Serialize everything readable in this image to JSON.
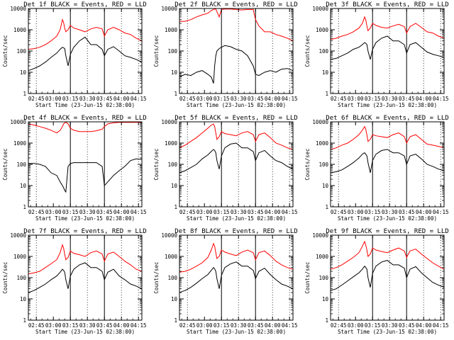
{
  "figure": {
    "title_template": "Det {det}f BLACK = Events, RED = LLD",
    "xlabel": "Start Time (23-Jun-15 02:38:00)",
    "ylabel": "Counts/sec",
    "x_tick_labels": [
      "02:45",
      "03:00",
      "03:15",
      "03:30",
      "03:45",
      "04:00",
      "04:15"
    ],
    "y_tick_labels": [
      "1",
      "10",
      "100",
      "1000",
      "10000"
    ],
    "colors": {
      "events": "#000000",
      "lld": "#ff0000"
    }
  },
  "chart_data": [
    {
      "type": "line",
      "detector": 1,
      "title": "Det 1f BLACK = Events, RED = LLD",
      "xlabel": "Start Time (23-Jun-15 02:38:00)",
      "ylabel": "Counts/sec",
      "x_unit": "minutes after 02:38:00",
      "xlim": [
        0,
        100
      ],
      "ylim": [
        1,
        10000
      ],
      "yscale": "log",
      "dotted_vlines_min": [
        7,
        52,
        82,
        97
      ],
      "solid_vlines_min": [
        37,
        67
      ],
      "x": [
        0,
        5,
        10,
        15,
        20,
        25,
        28,
        30,
        31,
        32,
        33,
        35,
        37,
        40,
        45,
        50,
        55,
        60,
        65,
        67,
        70,
        75,
        80,
        85,
        90,
        95,
        100
      ],
      "series": [
        {
          "name": "LLD",
          "color": "#ff0000",
          "values": [
            120,
            130,
            150,
            200,
            300,
            500,
            1000,
            3000,
            2200,
            1200,
            800,
            1000,
            1600,
            1200,
            1000,
            800,
            1100,
            1300,
            1100,
            500,
            1000,
            1300,
            1000,
            700,
            600,
            400,
            300
          ]
        },
        {
          "name": "Events",
          "color": "#000000",
          "values": [
            12,
            15,
            20,
            30,
            50,
            80,
            120,
            150,
            140,
            130,
            60,
            20,
            70,
            150,
            300,
            450,
            200,
            200,
            120,
            60,
            120,
            160,
            100,
            60,
            50,
            40,
            30
          ]
        }
      ]
    },
    {
      "type": "line",
      "detector": 2,
      "title": "Det 2f BLACK = Events, RED = LLD",
      "xlabel": "Start Time (23-Jun-15 02:38:00)",
      "ylabel": "Counts/sec",
      "x_unit": "minutes after 02:38:00",
      "xlim": [
        0,
        100
      ],
      "ylim": [
        1,
        10000
      ],
      "yscale": "log",
      "dotted_vlines_min": [
        7,
        52,
        82,
        97
      ],
      "solid_vlines_min": [
        37,
        67
      ],
      "x": [
        0,
        5,
        10,
        15,
        20,
        25,
        28,
        30,
        31,
        32,
        33,
        35,
        37,
        40,
        45,
        50,
        55,
        60,
        65,
        67,
        70,
        75,
        80,
        85,
        90,
        95,
        100
      ],
      "series": [
        {
          "name": "LLD",
          "color": "#ff0000",
          "values": [
            2500,
            2500,
            3000,
            4000,
            5000,
            6000,
            8000,
            9000,
            9500,
            9500,
            7000,
            4000,
            9000,
            9500,
            9500,
            9000,
            8500,
            9000,
            9000,
            3000,
            1500,
            800,
            800,
            600,
            500,
            400,
            300
          ]
        },
        {
          "name": "Events",
          "color": "#000000",
          "values": [
            6,
            8,
            7,
            10,
            12,
            8,
            6,
            3,
            20,
            60,
            100,
            130,
            150,
            180,
            160,
            120,
            100,
            60,
            20,
            8,
            7,
            10,
            12,
            10,
            14,
            15,
            12
          ]
        }
      ]
    },
    {
      "type": "line",
      "detector": 3,
      "title": "Det 3f BLACK = Events, RED = LLD",
      "xlabel": "Start Time (23-Jun-15 02:38:00)",
      "ylabel": "Counts/sec",
      "x_unit": "minutes after 02:38:00",
      "xlim": [
        0,
        100
      ],
      "ylim": [
        1,
        10000
      ],
      "yscale": "log",
      "dotted_vlines_min": [
        7,
        52,
        82,
        97
      ],
      "solid_vlines_min": [
        37,
        67
      ],
      "x": [
        0,
        5,
        10,
        15,
        20,
        25,
        28,
        30,
        31,
        32,
        33,
        35,
        37,
        40,
        45,
        50,
        55,
        60,
        65,
        67,
        70,
        75,
        80,
        85,
        90,
        95,
        100
      ],
      "series": [
        {
          "name": "LLD",
          "color": "#ff0000",
          "values": [
            350,
            400,
            500,
            600,
            800,
            1200,
            2000,
            4000,
            3000,
            1500,
            900,
            1200,
            2000,
            1600,
            1300,
            1200,
            1500,
            1800,
            1400,
            700,
            1400,
            2000,
            1300,
            800,
            700,
            500,
            400
          ]
        },
        {
          "name": "Events",
          "color": "#000000",
          "values": [
            40,
            45,
            60,
            80,
            120,
            150,
            200,
            250,
            230,
            200,
            100,
            40,
            120,
            250,
            400,
            500,
            300,
            300,
            200,
            80,
            200,
            250,
            150,
            90,
            70,
            60,
            50
          ]
        }
      ]
    },
    {
      "type": "line",
      "detector": 4,
      "title": "Det 4f BLACK = Events, RED = LLD",
      "xlabel": "Start Time (23-Jun-15 02:38:00)",
      "ylabel": "Counts/sec",
      "x_unit": "minutes after 02:38:00",
      "xlim": [
        0,
        100
      ],
      "ylim": [
        1,
        10000
      ],
      "yscale": "log",
      "dotted_vlines_min": [
        7,
        52,
        82,
        97
      ],
      "solid_vlines_min": [
        37,
        67
      ],
      "x": [
        0,
        5,
        10,
        15,
        20,
        25,
        28,
        30,
        31,
        32,
        33,
        35,
        37,
        40,
        45,
        50,
        55,
        60,
        65,
        67,
        70,
        75,
        80,
        85,
        90,
        95,
        100
      ],
      "series": [
        {
          "name": "LLD",
          "color": "#ff0000",
          "values": [
            8000,
            7000,
            6000,
            5000,
            4000,
            3000,
            4000,
            6000,
            8000,
            9000,
            9500,
            8000,
            5000,
            4000,
            3500,
            3500,
            3500,
            3800,
            4500,
            6000,
            8000,
            9000,
            9500,
            9500,
            9500,
            9500,
            9500
          ]
        },
        {
          "name": "Events",
          "color": "#000000",
          "values": [
            110,
            110,
            100,
            80,
            40,
            30,
            15,
            10,
            8,
            6,
            5,
            80,
            110,
            120,
            120,
            120,
            120,
            120,
            80,
            10,
            15,
            30,
            50,
            80,
            150,
            180,
            170
          ]
        }
      ]
    },
    {
      "type": "line",
      "detector": 5,
      "title": "Det 5f BLACK = Events, RED = LLD",
      "xlabel": "Start Time (23-Jun-15 02:38:00)",
      "ylabel": "Counts/sec",
      "x_unit": "minutes after 02:38:00",
      "xlim": [
        0,
        100
      ],
      "ylim": [
        1,
        10000
      ],
      "yscale": "log",
      "dotted_vlines_min": [
        7,
        52,
        82,
        97
      ],
      "solid_vlines_min": [
        37,
        67
      ],
      "x": [
        0,
        5,
        10,
        15,
        20,
        25,
        28,
        30,
        31,
        32,
        33,
        35,
        37,
        40,
        45,
        50,
        55,
        60,
        65,
        67,
        70,
        75,
        80,
        85,
        90,
        95,
        100
      ],
      "series": [
        {
          "name": "LLD",
          "color": "#ff0000",
          "values": [
            600,
            800,
            1200,
            1800,
            3000,
            5000,
            7000,
            8000,
            6000,
            3000,
            1500,
            2000,
            3500,
            2800,
            2500,
            2200,
            3000,
            3500,
            2500,
            1200,
            2500,
            3000,
            1800,
            1000,
            800,
            600,
            500
          ]
        },
        {
          "name": "Events",
          "color": "#000000",
          "values": [
            40,
            50,
            70,
            100,
            180,
            280,
            400,
            500,
            450,
            350,
            150,
            60,
            250,
            600,
            900,
            1000,
            600,
            600,
            400,
            150,
            350,
            450,
            250,
            150,
            120,
            80,
            60
          ]
        }
      ]
    },
    {
      "type": "line",
      "detector": 6,
      "title": "Det 6f BLACK = Events, RED = LLD",
      "xlabel": "Start Time (23-Jun-15 02:38:00)",
      "ylabel": "Counts/sec",
      "x_unit": "minutes after 02:38:00",
      "xlim": [
        0,
        100
      ],
      "ylim": [
        1,
        10000
      ],
      "yscale": "log",
      "dotted_vlines_min": [
        7,
        52,
        82,
        97
      ],
      "solid_vlines_min": [
        37,
        67
      ],
      "x": [
        0,
        5,
        10,
        15,
        20,
        25,
        28,
        30,
        31,
        32,
        33,
        35,
        37,
        40,
        45,
        50,
        55,
        60,
        65,
        67,
        70,
        75,
        80,
        85,
        90,
        95,
        100
      ],
      "series": [
        {
          "name": "LLD",
          "color": "#ff0000",
          "values": [
            500,
            600,
            800,
            1000,
            1500,
            2500,
            4000,
            6000,
            4500,
            2500,
            1200,
            1500,
            2500,
            2200,
            2000,
            1800,
            2500,
            3000,
            2000,
            1000,
            2000,
            2500,
            1500,
            900,
            800,
            700,
            600
          ]
        },
        {
          "name": "Events",
          "color": "#000000",
          "values": [
            40,
            45,
            55,
            80,
            120,
            200,
            300,
            350,
            300,
            250,
            120,
            40,
            150,
            300,
            450,
            500,
            350,
            350,
            250,
            100,
            250,
            300,
            180,
            100,
            80,
            60,
            50
          ]
        }
      ]
    },
    {
      "type": "line",
      "detector": 7,
      "title": "Det 7f BLACK = Events, RED = LLD",
      "xlabel": "Start Time (23-Jun-15 02:38:00)",
      "ylabel": "Counts/sec",
      "x_unit": "minutes after 02:38:00",
      "xlim": [
        0,
        100
      ],
      "ylim": [
        1,
        10000
      ],
      "yscale": "log",
      "dotted_vlines_min": [
        7,
        52,
        82,
        97
      ],
      "solid_vlines_min": [
        37,
        67
      ],
      "x": [
        0,
        5,
        10,
        15,
        20,
        25,
        28,
        30,
        31,
        32,
        33,
        35,
        37,
        40,
        45,
        50,
        55,
        60,
        65,
        67,
        70,
        75,
        80,
        85,
        90,
        95,
        100
      ],
      "series": [
        {
          "name": "LLD",
          "color": "#ff0000",
          "values": [
            150,
            170,
            200,
            300,
            450,
            700,
            1500,
            3500,
            2500,
            1300,
            700,
            900,
            1800,
            1400,
            1200,
            1000,
            1500,
            1800,
            1300,
            600,
            1300,
            1600,
            1000,
            600,
            400,
            250,
            200
          ]
        },
        {
          "name": "Events",
          "color": "#000000",
          "values": [
            20,
            25,
            35,
            50,
            80,
            120,
            180,
            250,
            220,
            180,
            80,
            30,
            120,
            250,
            400,
            500,
            300,
            300,
            200,
            80,
            180,
            250,
            120,
            80,
            50,
            40,
            30
          ]
        }
      ]
    },
    {
      "type": "line",
      "detector": 8,
      "title": "Det 8f BLACK = Events, RED = LLD",
      "xlabel": "Start Time (23-Jun-15 02:38:00)",
      "ylabel": "Counts/sec",
      "x_unit": "minutes after 02:38:00",
      "xlim": [
        0,
        100
      ],
      "ylim": [
        1,
        10000
      ],
      "yscale": "log",
      "dotted_vlines_min": [
        7,
        52,
        82,
        97
      ],
      "solid_vlines_min": [
        37,
        67
      ],
      "x": [
        0,
        5,
        10,
        15,
        20,
        25,
        28,
        30,
        31,
        32,
        33,
        35,
        37,
        40,
        45,
        50,
        55,
        60,
        65,
        67,
        70,
        75,
        80,
        85,
        90,
        95,
        100
      ],
      "series": [
        {
          "name": "LLD",
          "color": "#ff0000",
          "values": [
            180,
            200,
            250,
            350,
            500,
            900,
            2000,
            4000,
            3000,
            1500,
            800,
            1000,
            2000,
            1600,
            1300,
            1100,
            1600,
            2000,
            1500,
            700,
            1500,
            1800,
            1100,
            600,
            400,
            300,
            250
          ]
        },
        {
          "name": "Events",
          "color": "#000000",
          "values": [
            20,
            25,
            35,
            55,
            90,
            140,
            220,
            300,
            260,
            200,
            90,
            30,
            130,
            300,
            450,
            550,
            350,
            350,
            220,
            90,
            200,
            280,
            140,
            80,
            50,
            40,
            30
          ]
        }
      ]
    },
    {
      "type": "line",
      "detector": 9,
      "title": "Det 9f BLACK = Events, RED = LLD",
      "xlabel": "Start Time (23-Jun-15 02:38:00)",
      "ylabel": "Counts/sec",
      "x_unit": "minutes after 02:38:00",
      "xlim": [
        0,
        100
      ],
      "ylim": [
        1,
        10000
      ],
      "yscale": "log",
      "dotted_vlines_min": [
        7,
        52,
        82,
        97
      ],
      "solid_vlines_min": [
        37,
        67
      ],
      "x": [
        0,
        5,
        10,
        15,
        20,
        25,
        28,
        30,
        31,
        32,
        33,
        35,
        37,
        40,
        45,
        50,
        55,
        60,
        65,
        67,
        70,
        75,
        80,
        85,
        90,
        95,
        100
      ],
      "series": [
        {
          "name": "LLD",
          "color": "#ff0000",
          "values": [
            250,
            300,
            400,
            600,
            900,
            1500,
            3000,
            5000,
            3500,
            2000,
            1000,
            1300,
            2500,
            2000,
            1700,
            1500,
            2000,
            2500,
            1800,
            900,
            1800,
            2200,
            1300,
            800,
            500,
            350,
            250
          ]
        },
        {
          "name": "Events",
          "color": "#000000",
          "values": [
            25,
            30,
            45,
            70,
            110,
            170,
            250,
            350,
            300,
            250,
            100,
            35,
            160,
            350,
            550,
            650,
            400,
            400,
            280,
            100,
            250,
            330,
            170,
            100,
            60,
            45,
            35
          ]
        }
      ]
    }
  ]
}
